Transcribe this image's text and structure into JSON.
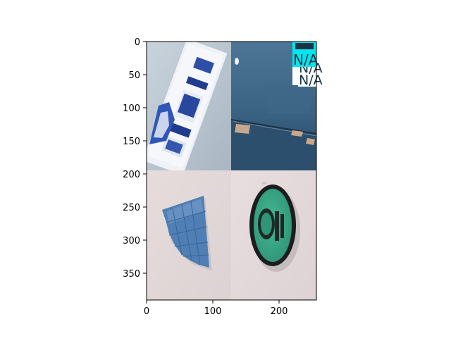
{
  "figure": {
    "x_ticks": [
      "0",
      "100",
      "200"
    ],
    "y_ticks": [
      "0",
      "50",
      "100",
      "150",
      "200",
      "250",
      "300",
      "350"
    ],
    "x_range": [
      0,
      256
    ],
    "y_range": [
      0,
      392
    ],
    "panels": [
      {
        "name": "blister-pack-panel",
        "label_lines": []
      },
      {
        "name": "cardboard-box-panel",
        "label_lines": [
          "N/A",
          "N/A",
          "N/A"
        ]
      },
      {
        "name": "blue-paper-panel",
        "label_lines": []
      },
      {
        "name": "round-tin-panel",
        "label_lines": []
      }
    ],
    "label_text": "N/A"
  },
  "colors": {
    "axis": "#000000",
    "label_cyan": "#00e5ee",
    "label_white": "#ffffff",
    "label_dark": "#1a3343"
  }
}
